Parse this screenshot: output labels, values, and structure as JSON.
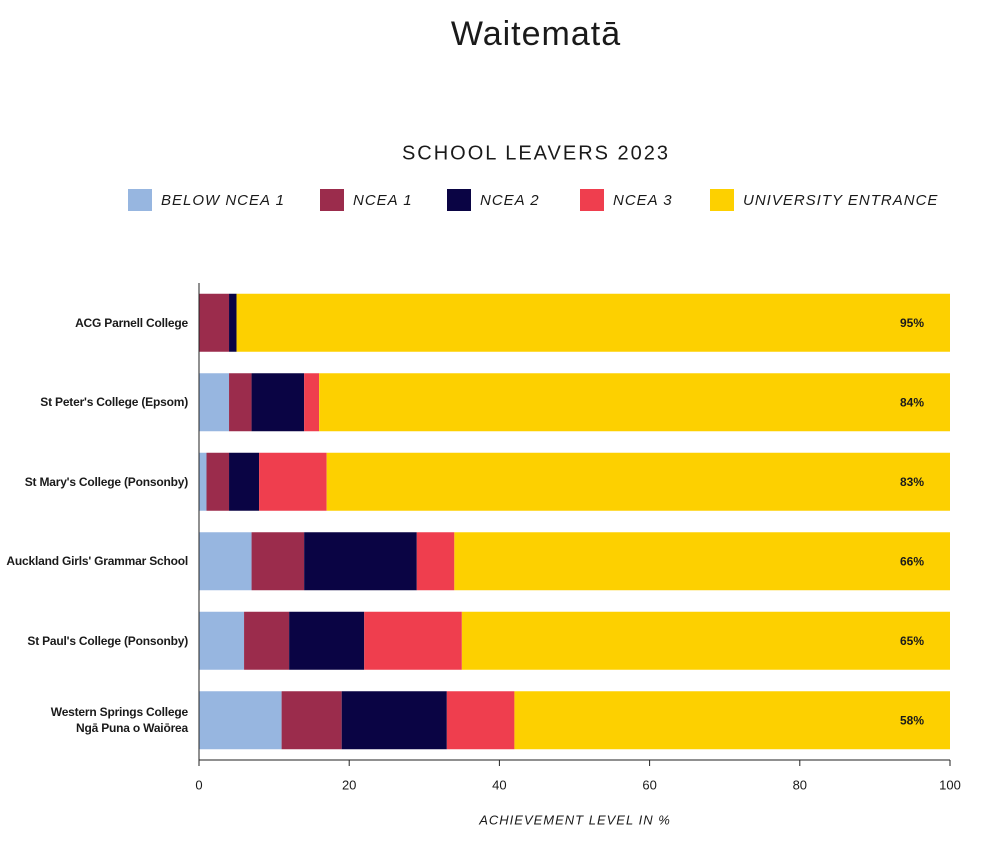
{
  "chart_data": {
    "type": "stacked-barh",
    "title": "Waitematā",
    "subtitle": "SCHOOL LEAVERS 2023",
    "xlabel": "ACHIEVEMENT LEVEL IN %",
    "categories": [
      "ACG Parnell College",
      "St Peter's College (Epsom)",
      "St Mary's College (Ponsonby)",
      "Auckland Girls' Grammar School",
      "St Paul's College (Ponsonby)",
      "Western Springs College\nNgā Puna o Waiōrea"
    ],
    "series": [
      {
        "name": "BELOW NCEA 1",
        "color": "#97b6e0",
        "values": [
          0,
          4,
          1,
          7,
          6,
          11
        ]
      },
      {
        "name": "NCEA 1",
        "color": "#9b2c4c",
        "values": [
          4,
          3,
          3,
          7,
          6,
          8
        ]
      },
      {
        "name": "NCEA 2",
        "color": "#0a0444",
        "values": [
          1,
          7,
          4,
          15,
          10,
          14
        ]
      },
      {
        "name": "NCEA 3",
        "color": "#ef3e4e",
        "values": [
          0,
          2,
          9,
          5,
          13,
          9
        ]
      },
      {
        "name": "UNIVERSITY ENTRANCE",
        "color": "#fdd000",
        "values": [
          95,
          84,
          83,
          66,
          65,
          58
        ],
        "value_labels": [
          "95%",
          "84%",
          "83%",
          "66%",
          "65%",
          "58%"
        ]
      }
    ],
    "xlim": [
      0,
      100
    ],
    "xticks": [
      0,
      20,
      40,
      60,
      80,
      100
    ],
    "legend": "top"
  }
}
